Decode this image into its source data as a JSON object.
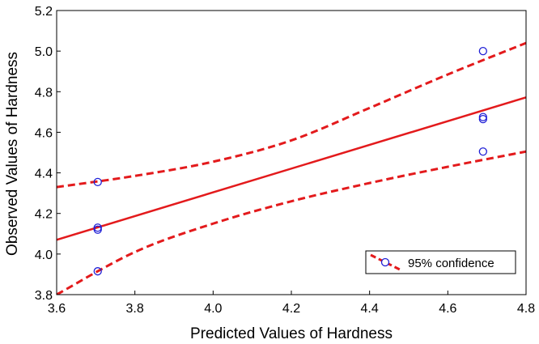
{
  "chart_data": {
    "type": "scatter",
    "xlabel": "Predicted Values of Hardness",
    "ylabel": "Observed Values of Hardness",
    "xlim": [
      3.6,
      4.8
    ],
    "ylim": [
      3.8,
      5.2
    ],
    "x_ticks": [
      "3.6",
      "3.8",
      "4.0",
      "4.2",
      "4.4",
      "4.6",
      "4.8"
    ],
    "y_ticks": [
      "3.8",
      "4.0",
      "4.2",
      "4.4",
      "4.6",
      "4.8",
      "5.0",
      "5.2"
    ],
    "grid": false,
    "legend_position": "bottom-right",
    "legend_label": "95% confidence",
    "colors": {
      "points": "#1f1fd6",
      "fit": "#e31a1c",
      "frame": "#000000"
    },
    "points": [
      {
        "x": 3.705,
        "y": 4.355
      },
      {
        "x": 3.705,
        "y": 4.13
      },
      {
        "x": 3.705,
        "y": 4.12
      },
      {
        "x": 3.705,
        "y": 3.915
      },
      {
        "x": 4.69,
        "y": 5.0
      },
      {
        "x": 4.69,
        "y": 4.675
      },
      {
        "x": 4.69,
        "y": 4.665
      },
      {
        "x": 4.69,
        "y": 4.505
      }
    ],
    "fit_line": [
      {
        "x": 3.6,
        "y": 4.07
      },
      {
        "x": 4.8,
        "y": 4.772
      }
    ],
    "upper_band": [
      {
        "x": 3.6,
        "y": 4.33
      },
      {
        "x": 3.8,
        "y": 4.385
      },
      {
        "x": 4.0,
        "y": 4.455
      },
      {
        "x": 4.2,
        "y": 4.56
      },
      {
        "x": 4.4,
        "y": 4.72
      },
      {
        "x": 4.6,
        "y": 4.885
      },
      {
        "x": 4.8,
        "y": 5.04
      }
    ],
    "lower_band": [
      {
        "x": 3.6,
        "y": 3.8
      },
      {
        "x": 3.8,
        "y": 4.01
      },
      {
        "x": 4.0,
        "y": 4.15
      },
      {
        "x": 4.2,
        "y": 4.26
      },
      {
        "x": 4.4,
        "y": 4.35
      },
      {
        "x": 4.6,
        "y": 4.43
      },
      {
        "x": 4.8,
        "y": 4.505
      }
    ]
  }
}
